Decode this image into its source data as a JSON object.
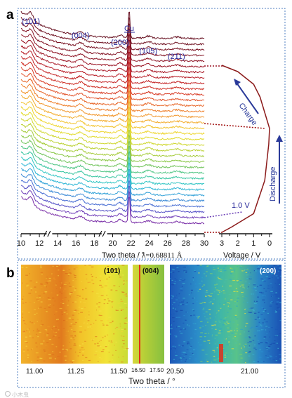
{
  "panel_labels": [
    "a",
    "b"
  ],
  "chart_data": [
    {
      "type": "line",
      "panel": "a",
      "description_series": "stacked in-situ XRD patterns, bottom (purple) to top (dark red)",
      "xlabel": "Two theta / °",
      "wavelength_label": "λ=0.68811 Å",
      "x_ticks": [
        "10",
        "12",
        "14",
        "16",
        "18",
        "20",
        "22",
        "24",
        "26",
        "28",
        "30"
      ],
      "xlim": [
        10,
        30
      ],
      "axis_breaks": [
        13,
        19
      ],
      "pattern_count": 34,
      "peak_labels": [
        {
          "text": "(101)",
          "two_theta": 11.1
        },
        {
          "text": "(004)",
          "two_theta": 16.5
        },
        {
          "text": "(200)",
          "two_theta": 20.8
        },
        {
          "text": "Cu",
          "two_theta": 21.8
        },
        {
          "text": "(105)",
          "two_theta": 23.9
        },
        {
          "text": "(211)",
          "two_theta": 27.0
        }
      ]
    },
    {
      "type": "line",
      "panel": "a-voltage",
      "xlabel": "Voltage / V",
      "x_ticks": [
        "3",
        "2",
        "1",
        "0"
      ],
      "xlim": [
        3,
        0
      ],
      "arrows": [
        "Charge",
        "Discharge"
      ],
      "annotation": "1.0 V",
      "discharge_voltage": [
        3.0,
        2.4,
        1.0,
        0.3,
        0.05,
        0.0
      ],
      "discharge_fraction": [
        0.0,
        0.05,
        0.18,
        0.5,
        0.85,
        1.0
      ],
      "charge_voltage": [
        0.0,
        0.3,
        0.6,
        1.0,
        2.0,
        3.0
      ],
      "charge_fraction": [
        0.0,
        0.25,
        0.5,
        0.7,
        0.9,
        1.0
      ]
    },
    {
      "type": "heatmap",
      "panel": "b",
      "xlabel": "Two theta / °",
      "maps": [
        {
          "label": "(101)",
          "x_ticks": [
            "11.00",
            "11.25",
            "11.50"
          ]
        },
        {
          "label": "(004)",
          "x_ticks": [
            "16.50",
            "17.50"
          ]
        },
        {
          "label": "(200)",
          "x_ticks": [
            "20.50",
            "21.00"
          ]
        }
      ]
    }
  ],
  "colors": {
    "frame": "#4f7fc0",
    "text_blue": "#2a2a9a",
    "curve": "#8b1a1a",
    "dots": "#a01010"
  },
  "watermark": "小木虫"
}
